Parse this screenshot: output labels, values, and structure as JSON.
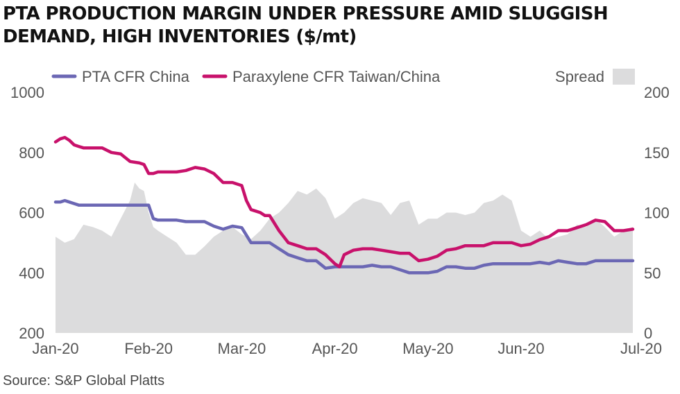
{
  "title_lines": [
    "PTA PRODUCTION MARGIN UNDER PRESSURE AMID SLUGGISH",
    "DEMAND, HIGH INVENTORIES ($/mt)"
  ],
  "source": "Source: S&P Global Platts",
  "colors": {
    "pta": "#6b67b4",
    "px": "#c8116b",
    "spread": "#dcdcdd",
    "axis_text": "#555555"
  },
  "chart_data": {
    "type": "line",
    "title": "PTA PRODUCTION MARGIN UNDER PRESSURE AMID SLUGGISH DEMAND, HIGH INVENTORIES ($/mt)",
    "x_tick_labels": [
      "Jan-20",
      "Feb-20",
      "Mar-20",
      "Apr-20",
      "May-20",
      "Jun-20",
      "Jul-20"
    ],
    "x_tick_positions": [
      0,
      1,
      2,
      3,
      4,
      5,
      6
    ],
    "y_left": {
      "range": [
        200,
        1000
      ],
      "ticks": [
        1000,
        800,
        600,
        400,
        200
      ]
    },
    "y_right": {
      "range": [
        0,
        200
      ],
      "ticks": [
        200,
        150,
        100,
        50,
        0
      ]
    },
    "legend": [
      "PTA CFR China",
      "Paraxylene CFR Taiwan/China",
      "Spread"
    ],
    "legend_position": "top",
    "grid": false,
    "series": [
      {
        "name": "PTA CFR China",
        "axis": "left",
        "kind": "line",
        "x": [
          0,
          0.05,
          0.1,
          0.15,
          0.2,
          0.25,
          0.3,
          0.35,
          0.4,
          0.5,
          0.6,
          0.7,
          0.8,
          0.9,
          1.0,
          1.05,
          1.1,
          1.2,
          1.3,
          1.4,
          1.5,
          1.6,
          1.7,
          1.8,
          1.9,
          2.0,
          2.1,
          2.2,
          2.3,
          2.4,
          2.45,
          2.5,
          2.6,
          2.7,
          2.8,
          2.9,
          3.0,
          3.1,
          3.2,
          3.3,
          3.4,
          3.5,
          3.6,
          3.7,
          3.8,
          3.9,
          4.0,
          4.1,
          4.2,
          4.3,
          4.4,
          4.5,
          4.6,
          4.7,
          4.8,
          4.9,
          5.0,
          5.1,
          5.2,
          5.3,
          5.4,
          5.5,
          5.6,
          5.7,
          5.8,
          5.9,
          6.0,
          6.2
        ],
        "values": [
          635,
          635,
          640,
          635,
          630,
          625,
          625,
          625,
          625,
          625,
          625,
          625,
          625,
          625,
          625,
          580,
          575,
          575,
          575,
          570,
          570,
          570,
          555,
          545,
          555,
          550,
          500,
          500,
          500,
          480,
          470,
          460,
          450,
          440,
          440,
          415,
          420,
          420,
          420,
          420,
          425,
          420,
          420,
          410,
          400,
          400,
          400,
          405,
          420,
          420,
          415,
          415,
          425,
          430,
          430,
          430,
          430,
          430,
          435,
          430,
          440,
          435,
          430,
          430,
          440,
          440,
          440,
          440
        ]
      },
      {
        "name": "Paraxylene CFR Taiwan/China",
        "axis": "left",
        "kind": "line",
        "x": [
          0,
          0.05,
          0.1,
          0.15,
          0.2,
          0.25,
          0.3,
          0.4,
          0.5,
          0.6,
          0.7,
          0.8,
          0.9,
          0.95,
          1.0,
          1.05,
          1.1,
          1.2,
          1.3,
          1.4,
          1.5,
          1.6,
          1.7,
          1.8,
          1.9,
          2.0,
          2.05,
          2.1,
          2.15,
          2.2,
          2.25,
          2.3,
          2.4,
          2.5,
          2.6,
          2.7,
          2.8,
          2.9,
          3.0,
          3.05,
          3.1,
          3.2,
          3.3,
          3.4,
          3.5,
          3.6,
          3.7,
          3.8,
          3.9,
          4.0,
          4.1,
          4.2,
          4.3,
          4.4,
          4.5,
          4.6,
          4.7,
          4.8,
          4.9,
          5.0,
          5.1,
          5.2,
          5.3,
          5.4,
          5.5,
          5.6,
          5.7,
          5.8,
          5.9,
          6.0,
          6.05,
          6.1,
          6.2
        ],
        "values": [
          835,
          845,
          850,
          840,
          825,
          820,
          815,
          815,
          815,
          800,
          795,
          770,
          765,
          760,
          730,
          730,
          735,
          735,
          735,
          740,
          750,
          745,
          730,
          700,
          700,
          690,
          640,
          610,
          605,
          600,
          590,
          590,
          540,
          500,
          490,
          480,
          480,
          460,
          430,
          420,
          460,
          475,
          480,
          480,
          475,
          470,
          465,
          465,
          440,
          445,
          455,
          475,
          480,
          490,
          490,
          490,
          500,
          500,
          500,
          490,
          495,
          510,
          520,
          540,
          540,
          550,
          560,
          575,
          570,
          540,
          540,
          540,
          545
        ]
      },
      {
        "name": "Spread",
        "axis": "right",
        "kind": "area",
        "x": [
          0,
          0.1,
          0.2,
          0.3,
          0.4,
          0.5,
          0.6,
          0.7,
          0.8,
          0.85,
          0.9,
          0.95,
          1.0,
          1.05,
          1.1,
          1.2,
          1.3,
          1.4,
          1.5,
          1.6,
          1.7,
          1.8,
          1.9,
          2.0,
          2.1,
          2.2,
          2.3,
          2.4,
          2.5,
          2.6,
          2.7,
          2.8,
          2.9,
          3.0,
          3.1,
          3.2,
          3.3,
          3.4,
          3.5,
          3.6,
          3.7,
          3.8,
          3.9,
          4.0,
          4.1,
          4.2,
          4.3,
          4.4,
          4.5,
          4.6,
          4.7,
          4.8,
          4.9,
          5.0,
          5.1,
          5.2,
          5.3,
          5.4,
          5.5,
          5.6,
          5.7,
          5.8,
          5.9,
          6.0,
          6.1,
          6.2
        ],
        "values": [
          80,
          75,
          78,
          90,
          88,
          85,
          80,
          95,
          110,
          125,
          120,
          118,
          100,
          88,
          85,
          80,
          75,
          65,
          65,
          72,
          80,
          85,
          88,
          82,
          78,
          85,
          95,
          100,
          108,
          118,
          115,
          120,
          112,
          95,
          100,
          108,
          112,
          110,
          108,
          98,
          108,
          110,
          90,
          95,
          95,
          100,
          100,
          98,
          100,
          108,
          110,
          115,
          110,
          85,
          80,
          85,
          78,
          80,
          82,
          90,
          88,
          95,
          88,
          80,
          85,
          88
        ]
      }
    ]
  }
}
